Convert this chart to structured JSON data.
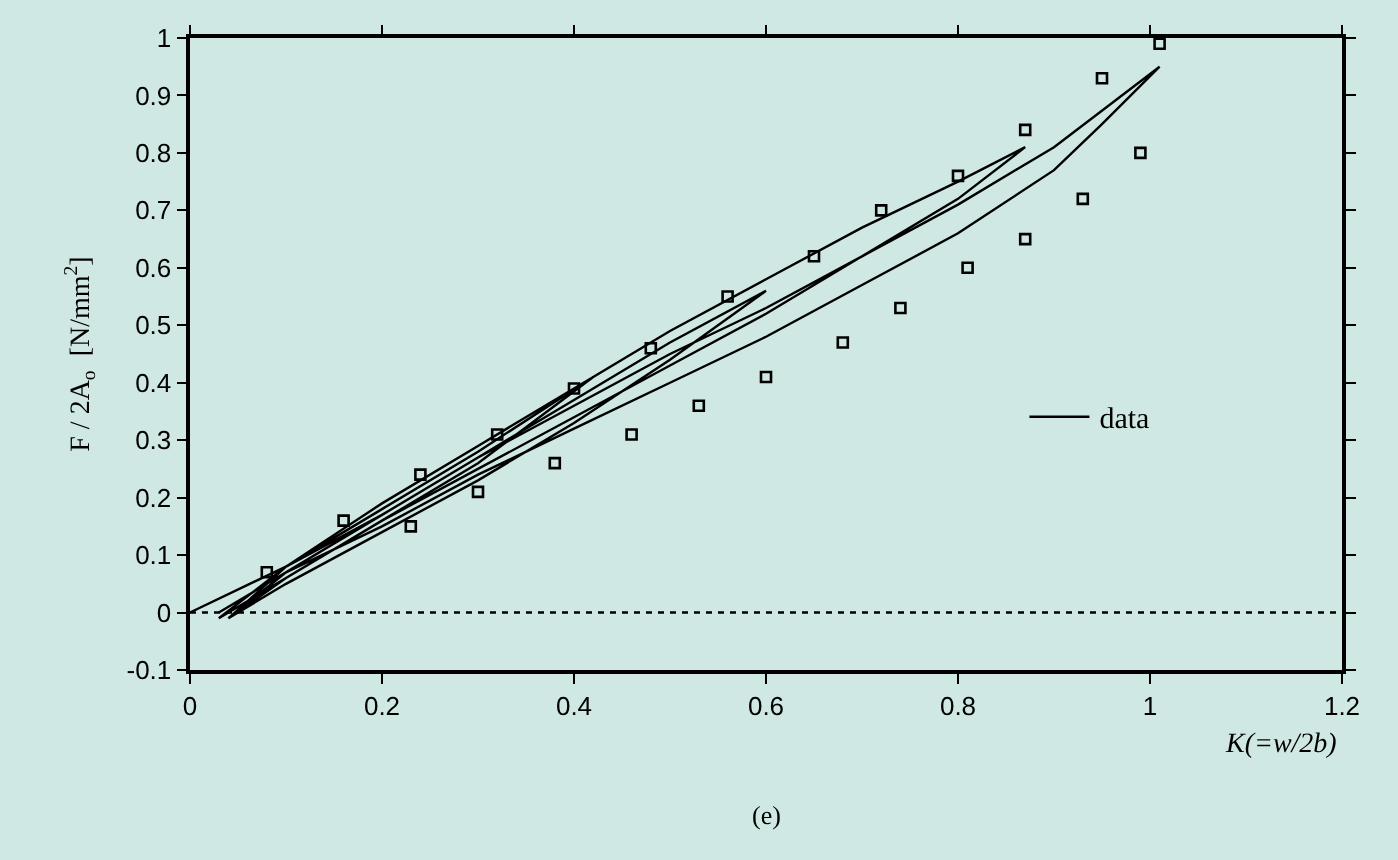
{
  "chart_data": {
    "type": "line",
    "xlabel": "K(=w/2b)",
    "ylabel": "F / 2A$_{o}$  [N/mm$^{2}$]",
    "xlim": [
      0,
      1.2
    ],
    "xticks": [
      0,
      0.2,
      0.4,
      0.6,
      0.8,
      1,
      1.2
    ],
    "ylim": [
      -0.1,
      1
    ],
    "yticks": [
      -0.1,
      0,
      0.1,
      0.2,
      0.3,
      0.4,
      0.5,
      0.6,
      0.7,
      0.8,
      0.9,
      1
    ],
    "grid": false,
    "legend": "right",
    "line_style": "solid",
    "ref_lines": [
      {
        "axis": "y",
        "value": 0,
        "line_style": "dotted",
        "color": "#000000"
      }
    ],
    "annotations": [
      "(e)"
    ],
    "series": [
      {
        "name": "data",
        "color": "#000000",
        "marker": "none",
        "x": [
          0,
          0.1,
          0.2,
          0.3,
          0.42,
          0.3,
          0.2,
          0.1,
          0.04,
          0.1,
          0.2,
          0.3,
          0.4,
          0.5,
          0.6,
          0.5,
          0.4,
          0.3,
          0.2,
          0.1,
          0.04,
          0.1,
          0.2,
          0.3,
          0.4,
          0.5,
          0.6,
          0.7,
          0.8,
          0.87,
          0.8,
          0.7,
          0.6,
          0.5,
          0.4,
          0.3,
          0.2,
          0.1,
          0.03,
          0.1,
          0.2,
          0.3,
          0.4,
          0.5,
          0.6,
          0.7,
          0.8,
          0.9,
          1.01,
          0.95,
          0.9,
          0.8,
          0.7,
          0.6,
          0.5,
          0.4,
          0.3,
          0.2,
          0.1,
          0.03
        ],
        "values": [
          0,
          0.08,
          0.18,
          0.28,
          0.41,
          0.26,
          0.16,
          0.06,
          -0.01,
          0.07,
          0.17,
          0.27,
          0.37,
          0.47,
          0.56,
          0.44,
          0.33,
          0.23,
          0.14,
          0.05,
          -0.01,
          0.08,
          0.19,
          0.29,
          0.39,
          0.49,
          0.58,
          0.67,
          0.75,
          0.81,
          0.72,
          0.62,
          0.52,
          0.43,
          0.34,
          0.25,
          0.16,
          0.06,
          -0.01,
          0.08,
          0.17,
          0.27,
          0.36,
          0.45,
          0.53,
          0.62,
          0.71,
          0.81,
          0.95,
          0.85,
          0.77,
          0.66,
          0.57,
          0.48,
          0.4,
          0.32,
          0.24,
          0.15,
          0.07,
          0
        ]
      },
      {
        "type": "scatter",
        "color": "#000000",
        "marker": "square",
        "x": [
          1.01,
          0.95,
          0.87,
          0.99,
          0.8,
          0.72,
          0.93,
          0.87,
          0.65,
          0.81,
          0.56,
          0.74,
          0.68,
          0.6,
          0.53,
          0.48,
          0.4,
          0.46,
          0.32,
          0.38,
          0.24,
          0.3,
          0.16,
          0.23,
          0.08
        ],
        "values": [
          0.99,
          0.93,
          0.84,
          0.8,
          0.76,
          0.7,
          0.72,
          0.65,
          0.62,
          0.6,
          0.55,
          0.53,
          0.47,
          0.41,
          0.36,
          0.46,
          0.39,
          0.31,
          0.31,
          0.26,
          0.24,
          0.21,
          0.16,
          0.15,
          0.07
        ]
      }
    ]
  }
}
